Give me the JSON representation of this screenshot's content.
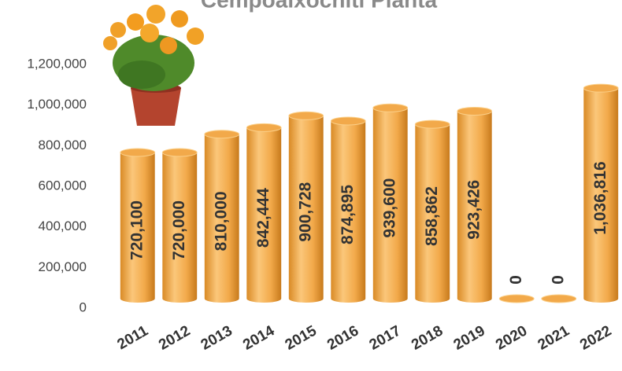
{
  "chart_data": {
    "type": "bar",
    "title": "Cempoalxochitl Planta",
    "categories": [
      "2011",
      "2012",
      "2013",
      "2014",
      "2015",
      "2016",
      "2017",
      "2018",
      "2019",
      "2020",
      "2021",
      "2022"
    ],
    "values": [
      720100,
      720000,
      810000,
      842444,
      900728,
      874895,
      939600,
      858862,
      923426,
      0,
      0,
      1036816
    ],
    "value_labels": [
      "720,100",
      "720,000",
      "810,000",
      "842,444",
      "900,728",
      "874,895",
      "939,600",
      "858,862",
      "923,426",
      "0",
      "0",
      "1,036,816"
    ],
    "color": "#f2a94a",
    "ylim": [
      0,
      1200000
    ],
    "yticks": [
      0,
      {
        "value": 200000,
        "label": "200,000"
      },
      {
        "value": 400000,
        "label": "400,000"
      },
      {
        "value": 600000,
        "label": "600,000"
      },
      {
        "value": 800000,
        "label": "800,000"
      },
      {
        "value": 1000000,
        "label": "1,000,000"
      },
      {
        "value": 1200000,
        "label": "1,200,000"
      }
    ],
    "grid": false
  }
}
